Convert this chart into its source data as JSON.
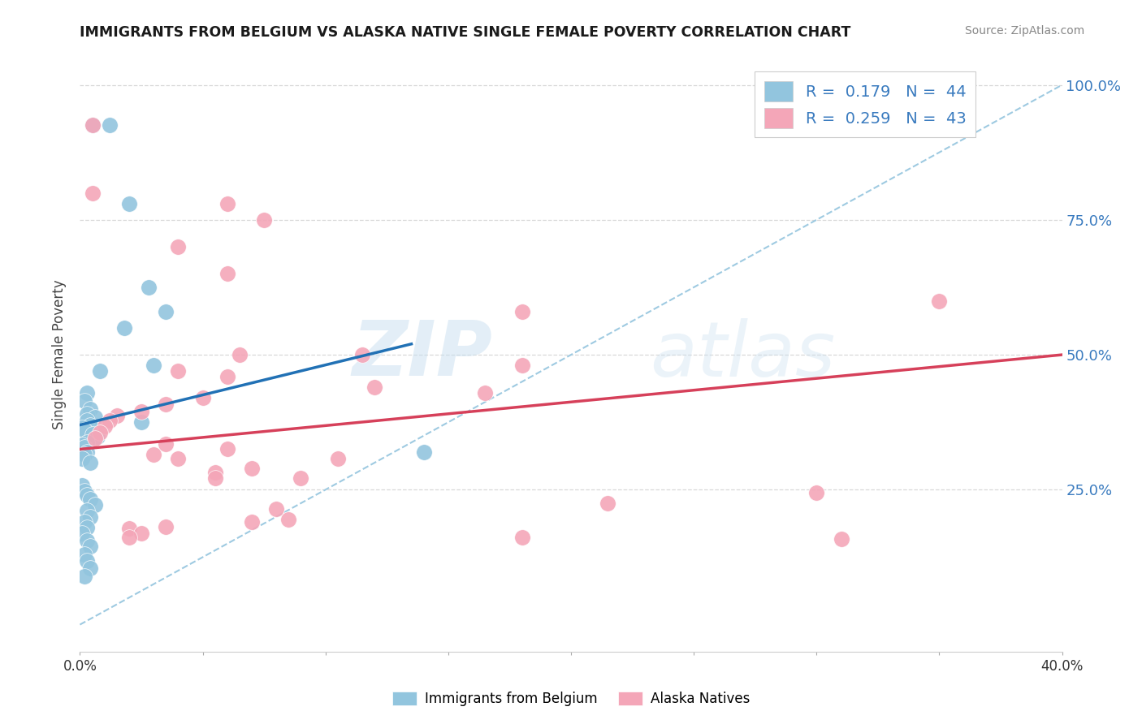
{
  "title": "IMMIGRANTS FROM BELGIUM VS ALASKA NATIVE SINGLE FEMALE POVERTY CORRELATION CHART",
  "source": "Source: ZipAtlas.com",
  "ylabel": "Single Female Poverty",
  "xlim": [
    0.0,
    0.4
  ],
  "ylim": [
    -0.05,
    1.05
  ],
  "xticks": [
    0.0,
    0.1,
    0.2,
    0.3,
    0.4
  ],
  "xtick_labels": [
    "0.0%",
    "",
    "",
    "",
    "40.0%"
  ],
  "ytick_labels_right": [
    "25.0%",
    "50.0%",
    "75.0%",
    "100.0%"
  ],
  "ytick_vals_right": [
    0.25,
    0.5,
    0.75,
    1.0
  ],
  "legend_labels": [
    "Immigrants from Belgium",
    "Alaska Natives"
  ],
  "legend_r": [
    "R = 0.179",
    "R = 0.259"
  ],
  "legend_n": [
    "N = 44",
    "N = 43"
  ],
  "color_blue": "#92c5de",
  "color_pink": "#f4a6b8",
  "line_blue": "#2171b5",
  "line_pink": "#d6405a",
  "diag_line_color": "#9ecae1",
  "watermark_zip": "ZIP",
  "watermark_atlas": "atlas",
  "blue_points": [
    [
      0.005,
      0.925
    ],
    [
      0.012,
      0.925
    ],
    [
      0.02,
      0.78
    ],
    [
      0.028,
      0.625
    ],
    [
      0.035,
      0.58
    ],
    [
      0.018,
      0.55
    ],
    [
      0.008,
      0.47
    ],
    [
      0.03,
      0.48
    ],
    [
      0.003,
      0.43
    ],
    [
      0.002,
      0.415
    ],
    [
      0.004,
      0.4
    ],
    [
      0.003,
      0.39
    ],
    [
      0.006,
      0.385
    ],
    [
      0.003,
      0.378
    ],
    [
      0.004,
      0.37
    ],
    [
      0.001,
      0.365
    ],
    [
      0.002,
      0.36
    ],
    [
      0.005,
      0.352
    ],
    [
      0.007,
      0.348
    ],
    [
      0.003,
      0.338
    ],
    [
      0.001,
      0.333
    ],
    [
      0.002,
      0.328
    ],
    [
      0.003,
      0.32
    ],
    [
      0.002,
      0.315
    ],
    [
      0.001,
      0.308
    ],
    [
      0.004,
      0.3
    ],
    [
      0.025,
      0.375
    ],
    [
      0.14,
      0.32
    ],
    [
      0.001,
      0.258
    ],
    [
      0.002,
      0.248
    ],
    [
      0.003,
      0.24
    ],
    [
      0.004,
      0.232
    ],
    [
      0.006,
      0.222
    ],
    [
      0.003,
      0.212
    ],
    [
      0.004,
      0.2
    ],
    [
      0.002,
      0.19
    ],
    [
      0.003,
      0.18
    ],
    [
      0.001,
      0.17
    ],
    [
      0.003,
      0.155
    ],
    [
      0.004,
      0.145
    ],
    [
      0.002,
      0.13
    ],
    [
      0.003,
      0.118
    ],
    [
      0.004,
      0.105
    ],
    [
      0.002,
      0.09
    ]
  ],
  "pink_points": [
    [
      0.005,
      0.925
    ],
    [
      0.005,
      0.8
    ],
    [
      0.06,
      0.78
    ],
    [
      0.075,
      0.75
    ],
    [
      0.04,
      0.7
    ],
    [
      0.06,
      0.65
    ],
    [
      0.065,
      0.5
    ],
    [
      0.115,
      0.5
    ],
    [
      0.18,
      0.48
    ],
    [
      0.04,
      0.47
    ],
    [
      0.06,
      0.46
    ],
    [
      0.12,
      0.44
    ],
    [
      0.165,
      0.43
    ],
    [
      0.05,
      0.42
    ],
    [
      0.035,
      0.408
    ],
    [
      0.025,
      0.395
    ],
    [
      0.015,
      0.388
    ],
    [
      0.012,
      0.378
    ],
    [
      0.01,
      0.368
    ],
    [
      0.008,
      0.355
    ],
    [
      0.006,
      0.345
    ],
    [
      0.035,
      0.335
    ],
    [
      0.06,
      0.325
    ],
    [
      0.03,
      0.315
    ],
    [
      0.04,
      0.308
    ],
    [
      0.105,
      0.308
    ],
    [
      0.07,
      0.29
    ],
    [
      0.055,
      0.282
    ],
    [
      0.055,
      0.272
    ],
    [
      0.09,
      0.272
    ],
    [
      0.08,
      0.215
    ],
    [
      0.085,
      0.195
    ],
    [
      0.07,
      0.19
    ],
    [
      0.035,
      0.182
    ],
    [
      0.02,
      0.178
    ],
    [
      0.025,
      0.17
    ],
    [
      0.02,
      0.162
    ],
    [
      0.18,
      0.162
    ],
    [
      0.31,
      0.158
    ],
    [
      0.215,
      0.225
    ],
    [
      0.35,
      0.6
    ],
    [
      0.3,
      0.245
    ],
    [
      0.18,
      0.58
    ]
  ],
  "blue_line": [
    [
      0.0,
      0.37
    ],
    [
      0.135,
      0.52
    ]
  ],
  "pink_line": [
    [
      0.0,
      0.325
    ],
    [
      0.4,
      0.5
    ]
  ],
  "diag_line": [
    [
      0.0,
      0.0
    ],
    [
      0.4,
      1.0
    ]
  ]
}
